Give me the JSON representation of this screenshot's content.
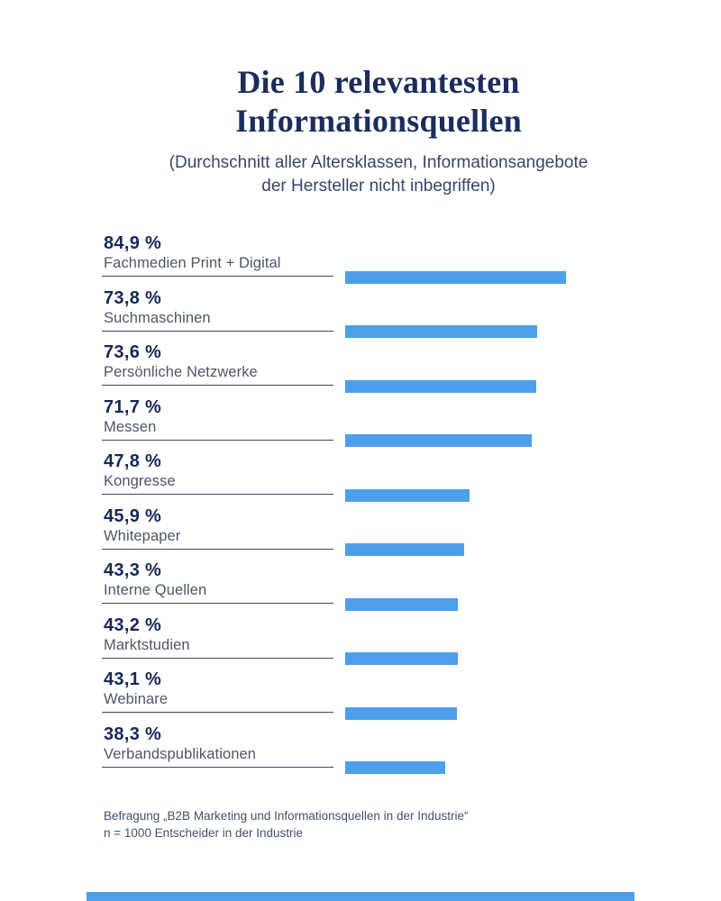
{
  "header": {
    "title_line1": "Die 10 relevantesten",
    "title_line2": "Informationsquellen",
    "subtitle_line1": "(Durchschnitt aller Altersklassen, Informationsangebote",
    "subtitle_line2": "der Hersteller nicht inbegriffen)"
  },
  "chart_data": {
    "type": "bar",
    "orientation": "horizontal",
    "title": "Die 10 relevantesten Informationsquellen",
    "subtitle": "(Durchschnitt aller Altersklassen, Informationsangebote der Hersteller nicht inbegriffen)",
    "categories": [
      "Fachmedien Print + Digital",
      "Suchmaschinen",
      "Persönliche Netzwerke",
      "Messen",
      "Kongresse",
      "Whitepaper",
      "Interne Quellen",
      "Marktstudien",
      "Webinare",
      "Verbandspublikationen"
    ],
    "values": [
      84.9,
      73.8,
      73.6,
      71.7,
      47.8,
      45.9,
      43.3,
      43.2,
      43.1,
      38.3
    ],
    "value_labels": [
      "84,9 %",
      "73,8 %",
      "73,6 %",
      "71,7 %",
      "47,8 %",
      "45,9 %",
      "43,3 %",
      "43,2 %",
      "43,1 %",
      "38,3 %"
    ],
    "unit": "%",
    "xlim": [
      0,
      100
    ],
    "bar_color": "#4d9fec",
    "legend": false,
    "grid": false
  },
  "footer": {
    "line1": "Befragung „B2B Marketing und Informationsquellen in der Industrie“",
    "line2": "n = 1000 Entscheider in der Industrie"
  },
  "colors": {
    "title": "#1b2d5e",
    "subtitle": "#36466b",
    "value_text": "#16285a",
    "category_text": "#4d5768",
    "underline": "#3f4a5c",
    "bar": "#4d9fec",
    "footer_text": "#42526d",
    "background": "#ffffff"
  }
}
